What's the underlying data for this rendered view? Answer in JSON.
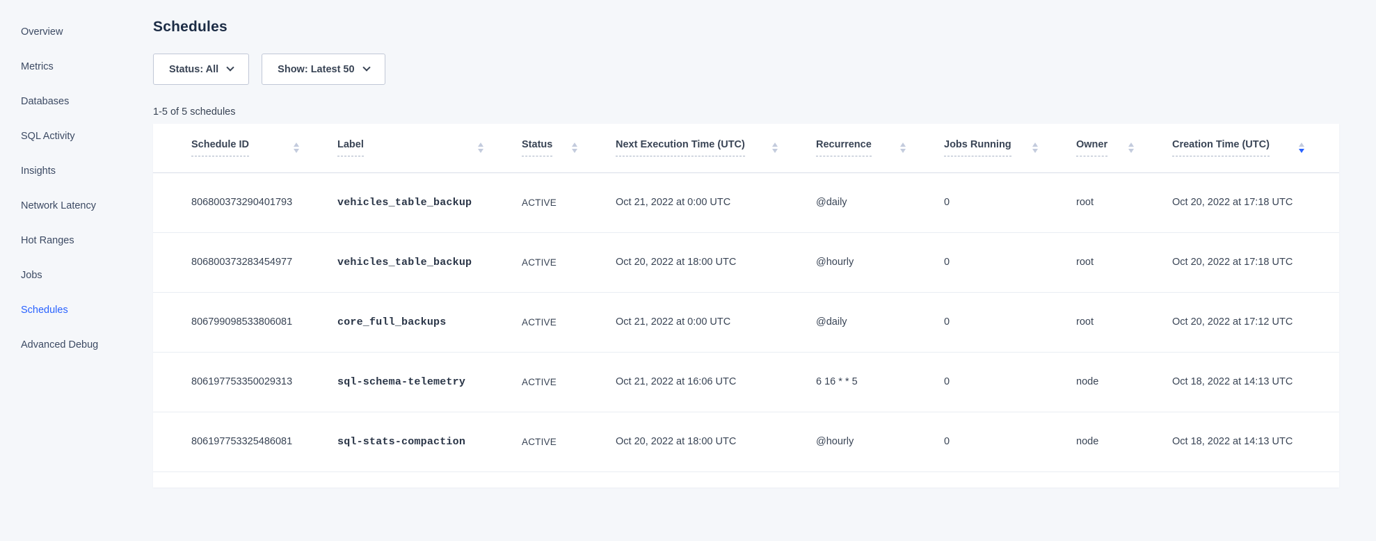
{
  "sidebar": {
    "items": [
      {
        "label": "Overview",
        "active": false
      },
      {
        "label": "Metrics",
        "active": false
      },
      {
        "label": "Databases",
        "active": false
      },
      {
        "label": "SQL Activity",
        "active": false
      },
      {
        "label": "Insights",
        "active": false
      },
      {
        "label": "Network Latency",
        "active": false
      },
      {
        "label": "Hot Ranges",
        "active": false
      },
      {
        "label": "Jobs",
        "active": false
      },
      {
        "label": "Schedules",
        "active": true
      },
      {
        "label": "Advanced Debug",
        "active": false
      }
    ]
  },
  "page": {
    "title": "Schedules",
    "results_count": "1-5 of 5 schedules"
  },
  "filters": {
    "status": {
      "label": "Status: All"
    },
    "show": {
      "label": "Show: Latest 50"
    }
  },
  "table": {
    "columns": [
      {
        "label": "Schedule ID",
        "sort": "none"
      },
      {
        "label": "Label",
        "sort": "none"
      },
      {
        "label": "Status",
        "sort": "none"
      },
      {
        "label": "Next Execution Time (UTC)",
        "sort": "none"
      },
      {
        "label": "Recurrence",
        "sort": "none"
      },
      {
        "label": "Jobs Running",
        "sort": "none"
      },
      {
        "label": "Owner",
        "sort": "none"
      },
      {
        "label": "Creation Time (UTC)",
        "sort": "desc"
      }
    ],
    "rows": [
      {
        "schedule_id": "806800373290401793",
        "label": "vehicles_table_backup",
        "status": "ACTIVE",
        "next_execution": "Oct 21, 2022 at 0:00 UTC",
        "recurrence": "@daily",
        "jobs_running": "0",
        "owner": "root",
        "creation_time": "Oct 20, 2022 at 17:18 UTC"
      },
      {
        "schedule_id": "806800373283454977",
        "label": "vehicles_table_backup",
        "status": "ACTIVE",
        "next_execution": "Oct 20, 2022 at 18:00 UTC",
        "recurrence": "@hourly",
        "jobs_running": "0",
        "owner": "root",
        "creation_time": "Oct 20, 2022 at 17:18 UTC"
      },
      {
        "schedule_id": "806799098533806081",
        "label": "core_full_backups",
        "status": "ACTIVE",
        "next_execution": "Oct 21, 2022 at 0:00 UTC",
        "recurrence": "@daily",
        "jobs_running": "0",
        "owner": "root",
        "creation_time": "Oct 20, 2022 at 17:12 UTC"
      },
      {
        "schedule_id": "806197753350029313",
        "label": "sql-schema-telemetry",
        "status": "ACTIVE",
        "next_execution": "Oct 21, 2022 at 16:06 UTC",
        "recurrence": "6 16 * * 5",
        "jobs_running": "0",
        "owner": "node",
        "creation_time": "Oct 18, 2022 at 14:13 UTC"
      },
      {
        "schedule_id": "806197753325486081",
        "label": "sql-stats-compaction",
        "status": "ACTIVE",
        "next_execution": "Oct 20, 2022 at 18:00 UTC",
        "recurrence": "@hourly",
        "jobs_running": "0",
        "owner": "node",
        "creation_time": "Oct 18, 2022 at 14:13 UTC"
      }
    ]
  },
  "colors": {
    "accent": "#2962ff",
    "page_bg": "#f5f7fa",
    "text_dark": "#394455",
    "title_text": "#1c2c45",
    "row_border": "#e9edf3",
    "sort_inactive": "#c3cbdd"
  }
}
